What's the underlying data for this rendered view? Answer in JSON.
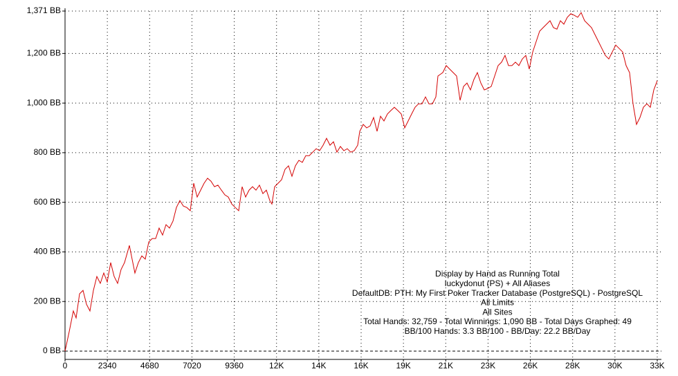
{
  "chart_data": {
    "type": "line",
    "x": [
      0,
      230,
      459,
      612,
      804,
      995,
      1186,
      1378,
      1569,
      1760,
      1952,
      2143,
      2334,
      2526,
      2717,
      2909,
      3100,
      3291,
      3559,
      3674,
      3865,
      4057,
      4248,
      4439,
      4631,
      4822,
      5013,
      5205,
      5396,
      5587,
      5779,
      5970,
      6161,
      6353,
      6544,
      6735,
      6927,
      7118,
      7310,
      7501,
      7692,
      7884,
      8075,
      8266,
      8458,
      8649,
      8840,
      9032,
      9223,
      9414,
      9606,
      9797,
      9988,
      10180,
      10371,
      10563,
      10754,
      10945,
      11137,
      11328,
      11443,
      11596,
      11787,
      11979,
      12170,
      12361,
      12553,
      12744,
      12935,
      13127,
      13318,
      13509,
      13701,
      13892,
      14083,
      14275,
      14466,
      14657,
      14849,
      15040,
      15231,
      15423,
      15614,
      15805,
      15997,
      16188,
      16303,
      16494,
      16686,
      16877,
      17068,
      17260,
      17451,
      17642,
      17834,
      18025,
      18217,
      18408,
      18599,
      18791,
      18982,
      19173,
      19365,
      19556,
      19747,
      19939,
      20130,
      20321,
      20513,
      20628,
      20895,
      21087,
      21278,
      21469,
      21661,
      21852,
      22043,
      22235,
      22426,
      22617,
      22809,
      23000,
      23192,
      23383,
      23574,
      23766,
      23957,
      24148,
      24340,
      24531,
      24722,
      24914,
      25105,
      25296,
      25488,
      25679,
      25870,
      26062,
      26253,
      26445,
      26636,
      26827,
      27019,
      27210,
      27401,
      27593,
      27784,
      27975,
      28167,
      28358,
      28549,
      28741,
      28932,
      29123,
      29315,
      29506,
      29697,
      29889,
      30080,
      30271,
      30463,
      30654,
      30846,
      31037,
      31228,
      31420,
      31611,
      31802,
      31994,
      32185,
      32376,
      32568,
      32759
    ],
    "series": [
      {
        "color": "#d40000",
        "values": [
          0,
          78,
          162,
          134,
          231,
          245,
          189,
          162,
          245,
          301,
          273,
          315,
          279,
          357,
          301,
          273,
          329,
          357,
          426,
          384,
          315,
          357,
          384,
          371,
          440,
          454,
          454,
          496,
          468,
          510,
          496,
          524,
          579,
          607,
          585,
          579,
          566,
          677,
          621,
          649,
          677,
          697,
          685,
          663,
          669,
          649,
          630,
          621,
          593,
          579,
          566,
          663,
          621,
          649,
          663,
          649,
          669,
          635,
          649,
          607,
          593,
          663,
          677,
          691,
          733,
          747,
          705,
          747,
          769,
          761,
          788,
          788,
          802,
          816,
          808,
          830,
          858,
          830,
          844,
          802,
          825,
          808,
          816,
          802,
          808,
          830,
          886,
          914,
          900,
          908,
          942,
          886,
          947,
          928,
          956,
          970,
          983,
          970,
          956,
          900,
          928,
          956,
          983,
          997,
          997,
          1025,
          997,
          997,
          1025,
          1109,
          1123,
          1151,
          1137,
          1123,
          1109,
          1011,
          1067,
          1081,
          1053,
          1095,
          1123,
          1081,
          1053,
          1059,
          1067,
          1109,
          1151,
          1165,
          1192,
          1151,
          1151,
          1165,
          1151,
          1178,
          1192,
          1137,
          1206,
          1248,
          1290,
          1304,
          1318,
          1332,
          1304,
          1298,
          1332,
          1318,
          1346,
          1360,
          1354,
          1346,
          1365,
          1332,
          1318,
          1304,
          1276,
          1248,
          1220,
          1192,
          1178,
          1206,
          1234,
          1220,
          1206,
          1151,
          1123,
          997,
          914,
          942,
          983,
          997,
          983,
          1053,
          1090
        ]
      }
    ],
    "xlim": [
      0,
      32760
    ],
    "xticks": [
      0,
      2340,
      4680,
      7020,
      9360,
      {
        "value": 11700,
        "label": "12K"
      },
      {
        "value": 14040,
        "label": "14K"
      },
      {
        "value": 16380,
        "label": "16K"
      },
      {
        "value": 18720,
        "label": "19K"
      },
      {
        "value": 21060,
        "label": "21K"
      },
      {
        "value": 23400,
        "label": "23K"
      },
      {
        "value": 25740,
        "label": "26K"
      },
      {
        "value": 28080,
        "label": "28K"
      },
      {
        "value": 30420,
        "label": "30K"
      },
      {
        "value": 32760,
        "label": "33K"
      }
    ],
    "ylim": [
      0,
      1371
    ],
    "yticks": [
      {
        "value": 0,
        "label": "0 BB"
      },
      {
        "value": 200,
        "label": "200 BB"
      },
      {
        "value": 400,
        "label": "400 BB"
      },
      {
        "value": 600,
        "label": "600 BB"
      },
      {
        "value": 800,
        "label": "800 BB"
      },
      {
        "value": 1000,
        "label": "1,000 BB"
      },
      {
        "value": 1200,
        "label": "1,200 BB"
      },
      {
        "value": 1371,
        "label": "1,371 BB"
      }
    ],
    "grid": true,
    "annotations": [
      "Display by Hand as Running Total",
      "luckydonut (PS) + All Aliases",
      "DefaultDB: PTH: My First Poker Tracker Database (PostgreSQL) - PostgreSQL",
      "All Limits",
      "All Sites",
      "Total Hands: 32,759 - Total Winnings: 1,090 BB - Total Days Graphed: 49",
      "BB/100 Hands: 3.3 BB/100 - BB/Day: 22.2 BB/Day"
    ]
  }
}
